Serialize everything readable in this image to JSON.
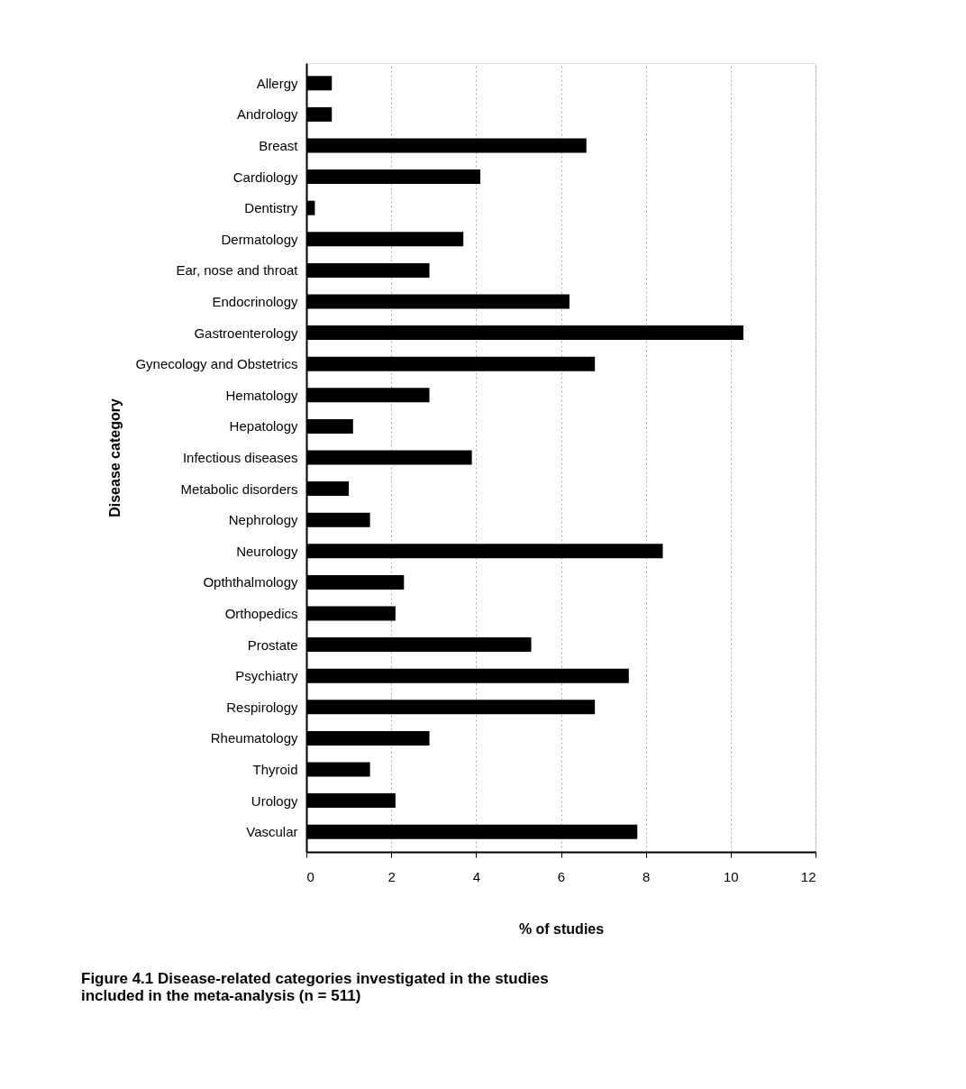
{
  "chart_data": {
    "type": "bar",
    "orientation": "horizontal",
    "xlabel": "% of studies",
    "ylabel": "Disease category",
    "categories": [
      "Allergy",
      "Andrology",
      "Breast",
      "Cardiology",
      "Dentistry",
      "Dermatology",
      "Ear, nose and throat",
      "Endocrinology",
      "Gastroenterology",
      "Gynecology and Obstetrics",
      "Hematology",
      "Hepatology",
      "Infectious diseases",
      "Metabolic disorders",
      "Nephrology",
      "Neurology",
      "Opththalmology",
      "Orthopedics",
      "Prostate",
      "Psychiatry",
      "Respirology",
      "Rheumatology",
      "Thyroid",
      "Urology",
      "Vascular"
    ],
    "values": [
      0.6,
      0.6,
      6.6,
      4.1,
      0.2,
      3.7,
      2.9,
      6.2,
      10.3,
      6.8,
      2.9,
      1.1,
      3.9,
      1.0,
      1.5,
      8.4,
      2.3,
      2.1,
      5.3,
      7.6,
      6.8,
      2.9,
      1.5,
      2.1,
      7.8
    ],
    "color": "#000000",
    "xlim": [
      0,
      12
    ],
    "xticks": [
      0,
      2,
      4,
      6,
      8,
      10,
      12
    ],
    "grid": "x",
    "annotations": [
      "Figure 4.1  Disease-related categories investigated in the studies\nincluded in the meta-analysis (n = 511)"
    ]
  }
}
